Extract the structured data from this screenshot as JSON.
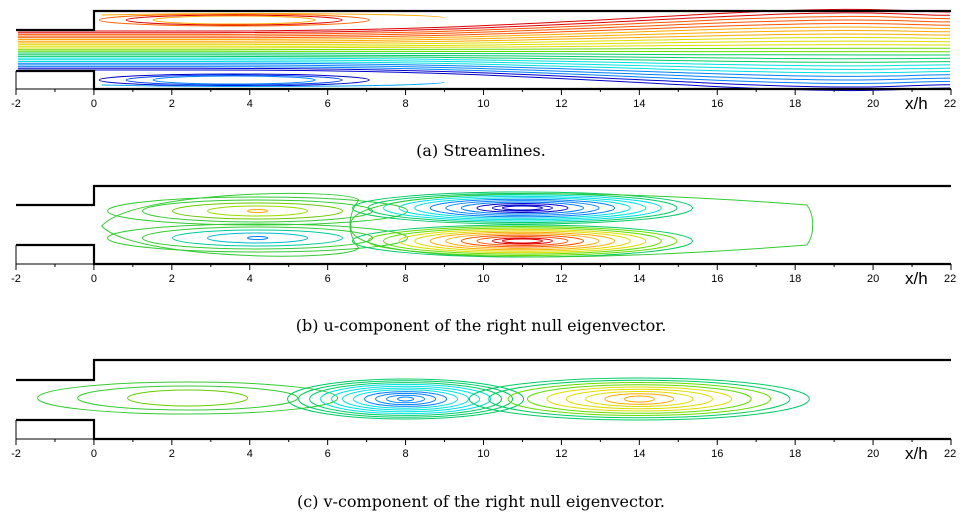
{
  "figure": {
    "panels": [
      {
        "id": "a",
        "caption": "(a) Streamlines.",
        "axis_title": "x/h",
        "tick_labels": [
          "-2",
          "0",
          "2",
          "4",
          "6",
          "8",
          "10",
          "12",
          "14",
          "16",
          "18",
          "20",
          "22"
        ]
      },
      {
        "id": "b",
        "caption": "(b) u-component of the right null eigenvector.",
        "axis_title": "x/h",
        "tick_labels": [
          "-2",
          "0",
          "2",
          "4",
          "6",
          "8",
          "10",
          "12",
          "14",
          "16",
          "18",
          "20",
          "22"
        ]
      },
      {
        "id": "c",
        "caption": "(c) v-component of the right null eigenvector.",
        "axis_title": "x/h",
        "tick_labels": [
          "-2",
          "0",
          "2",
          "4",
          "6",
          "8",
          "10",
          "12",
          "14",
          "16",
          "18",
          "20",
          "22"
        ]
      }
    ]
  },
  "colors": {
    "wall": "#000000",
    "ramp": [
      "#0000cc",
      "#0080ff",
      "#00e0e0",
      "#00cc66",
      "#66dd00",
      "#dddd00",
      "#ffaa00",
      "#ff5500",
      "#dd0000"
    ]
  },
  "chart_data": [
    {
      "type": "contour",
      "panel": "a",
      "x_range": [
        -2,
        22
      ],
      "xlabel": "x/h",
      "ticks": [
        -2,
        0,
        2,
        4,
        6,
        8,
        10,
        12,
        14,
        16,
        18,
        20,
        22
      ],
      "step_x": 0,
      "recirculation_vortex_centers_x": [
        3.5,
        3.5
      ],
      "streamline_count": 24
    },
    {
      "type": "contour",
      "panel": "b",
      "x_range": [
        -2,
        22
      ],
      "xlabel": "x/h",
      "ticks": [
        -2,
        0,
        2,
        4,
        6,
        8,
        10,
        12,
        14,
        16,
        18,
        20,
        22
      ],
      "cells_center_x": [
        4.2,
        4.2,
        11.0,
        11.0
      ]
    },
    {
      "type": "contour",
      "panel": "c",
      "x_range": [
        -2,
        22
      ],
      "xlabel": "x/h",
      "ticks": [
        -2,
        0,
        2,
        4,
        6,
        8,
        10,
        12,
        14,
        16,
        18,
        20,
        22
      ],
      "cells_center_x": [
        2.2,
        8.0,
        14.0
      ]
    }
  ]
}
